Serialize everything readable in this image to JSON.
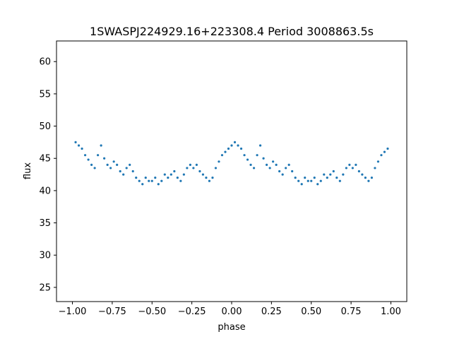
{
  "chart_data": {
    "type": "scatter",
    "title": "1SWASPJ224929.16+223308.4 Period 3008863.5s",
    "xlabel": "phase",
    "ylabel": "flux",
    "xlim": [
      -1.1,
      1.1
    ],
    "ylim": [
      22.8,
      63.2
    ],
    "xticks": [
      -1.0,
      -0.75,
      -0.5,
      -0.25,
      0.0,
      0.25,
      0.5,
      0.75,
      1.0
    ],
    "xtick_labels": [
      "−1.00",
      "−0.75",
      "−0.50",
      "−0.25",
      "0.00",
      "0.25",
      "0.50",
      "0.75",
      "1.00"
    ],
    "yticks": [
      25,
      30,
      35,
      40,
      45,
      50,
      55,
      60
    ],
    "ytick_labels": [
      "25",
      "30",
      "35",
      "40",
      "45",
      "50",
      "55",
      "60"
    ],
    "grid": false,
    "point_color": "#1f77b4",
    "series": [
      {
        "x": [
          -0.98,
          -0.96,
          -0.94,
          -0.92,
          -0.9,
          -0.88,
          -0.86,
          -0.84,
          -0.82,
          -0.8,
          -0.78,
          -0.76,
          -0.74,
          -0.72,
          -0.7,
          -0.68,
          -0.66,
          -0.64,
          -0.62,
          -0.6,
          -0.58,
          -0.56,
          -0.54,
          -0.52,
          -0.5,
          -0.48,
          -0.46,
          -0.44,
          -0.42,
          -0.4,
          -0.38,
          -0.36,
          -0.34,
          -0.32,
          -0.3,
          -0.28,
          -0.26,
          -0.24,
          -0.22,
          -0.2,
          -0.18,
          -0.16,
          -0.14,
          -0.12,
          -0.1,
          -0.08,
          -0.06,
          -0.04,
          -0.02,
          0.0,
          0.02,
          0.04,
          0.06,
          0.08,
          0.1,
          0.12,
          0.14,
          0.16,
          0.18,
          0.2,
          0.22,
          0.24,
          0.26,
          0.28,
          0.3,
          0.32,
          0.34,
          0.36,
          0.38,
          0.4,
          0.42,
          0.44,
          0.46,
          0.48,
          0.5,
          0.52,
          0.54,
          0.56,
          0.58,
          0.6,
          0.62,
          0.64,
          0.66,
          0.68,
          0.7,
          0.72,
          0.74,
          0.76,
          0.78,
          0.8,
          0.82,
          0.84,
          0.86,
          0.88,
          0.9,
          0.92,
          0.94,
          0.96,
          0.98
        ],
        "y": [
          47.5,
          47.0,
          46.5,
          45.5,
          44.8,
          44.0,
          43.5,
          45.5,
          47.0,
          45.0,
          44.0,
          43.5,
          44.5,
          44.0,
          43.0,
          42.5,
          43.5,
          44.0,
          43.0,
          42.0,
          41.5,
          41.0,
          42.0,
          41.5,
          41.5,
          42.0,
          41.0,
          41.5,
          42.5,
          42.0,
          42.5,
          43.0,
          42.0,
          41.5,
          42.5,
          43.5,
          44.0,
          43.5,
          44.0,
          43.0,
          42.5,
          42.0,
          41.5,
          42.0,
          43.5,
          44.5,
          45.5,
          46.0,
          46.5,
          47.0,
          47.5,
          47.0,
          46.5,
          45.5,
          44.8,
          44.0,
          43.5,
          45.5,
          47.0,
          45.0,
          44.0,
          43.5,
          44.5,
          44.0,
          43.0,
          42.5,
          43.5,
          44.0,
          43.0,
          42.0,
          41.5,
          41.0,
          42.0,
          41.5,
          41.5,
          42.0,
          41.0,
          41.5,
          42.5,
          42.0,
          42.5,
          43.0,
          42.0,
          41.5,
          42.5,
          43.5,
          44.0,
          43.5,
          44.0,
          43.0,
          42.5,
          42.0,
          41.5,
          42.0,
          43.5,
          44.5,
          45.5,
          46.0,
          46.5
        ]
      }
    ]
  }
}
